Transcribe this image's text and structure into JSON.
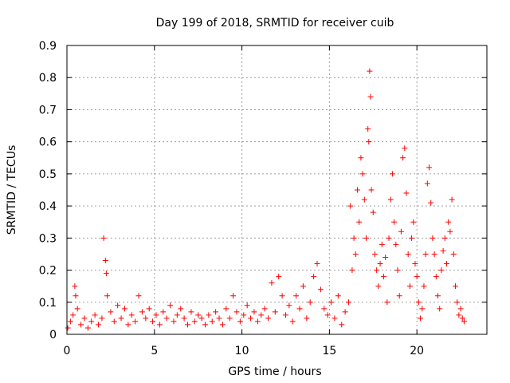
{
  "chart_data": {
    "type": "scatter",
    "title": "Day 199 of 2018, SRMTID for receiver cuib",
    "xlabel": "GPS time / hours",
    "ylabel": "SRMTID / TECUs",
    "xlim": [
      0,
      24
    ],
    "ylim": [
      0,
      0.9
    ],
    "xticks": [
      0,
      5,
      10,
      15,
      20
    ],
    "xtick_labels": [
      "0",
      "5",
      "10",
      "15",
      "20"
    ],
    "yticks": [
      0,
      0.1,
      0.2,
      0.3,
      0.4,
      0.5,
      0.6,
      0.7,
      0.8,
      0.9
    ],
    "ytick_labels": [
      "0",
      "0.1",
      "0.2",
      "0.3",
      "0.4",
      "0.5",
      "0.6",
      "0.7",
      "0.8",
      "0.9"
    ],
    "grid": true,
    "marker": "+",
    "marker_color": "#ff0000",
    "series": [
      {
        "name": "SRMTID",
        "points": [
          [
            0.05,
            0.02
          ],
          [
            0.2,
            0.04
          ],
          [
            0.35,
            0.06
          ],
          [
            0.45,
            0.15
          ],
          [
            0.5,
            0.12
          ],
          [
            0.6,
            0.08
          ],
          [
            0.8,
            0.03
          ],
          [
            1.0,
            0.05
          ],
          [
            1.2,
            0.02
          ],
          [
            1.4,
            0.04
          ],
          [
            1.6,
            0.06
          ],
          [
            1.8,
            0.03
          ],
          [
            2.0,
            0.05
          ],
          [
            2.1,
            0.3
          ],
          [
            2.2,
            0.23
          ],
          [
            2.25,
            0.19
          ],
          [
            2.3,
            0.12
          ],
          [
            2.5,
            0.07
          ],
          [
            2.7,
            0.04
          ],
          [
            2.9,
            0.09
          ],
          [
            3.1,
            0.05
          ],
          [
            3.3,
            0.08
          ],
          [
            3.5,
            0.03
          ],
          [
            3.7,
            0.06
          ],
          [
            3.9,
            0.04
          ],
          [
            4.1,
            0.12
          ],
          [
            4.3,
            0.07
          ],
          [
            4.5,
            0.05
          ],
          [
            4.7,
            0.08
          ],
          [
            4.9,
            0.04
          ],
          [
            5.1,
            0.06
          ],
          [
            5.3,
            0.03
          ],
          [
            5.5,
            0.07
          ],
          [
            5.7,
            0.05
          ],
          [
            5.9,
            0.09
          ],
          [
            6.1,
            0.04
          ],
          [
            6.3,
            0.06
          ],
          [
            6.5,
            0.08
          ],
          [
            6.7,
            0.05
          ],
          [
            6.9,
            0.03
          ],
          [
            7.1,
            0.07
          ],
          [
            7.3,
            0.04
          ],
          [
            7.5,
            0.06
          ],
          [
            7.7,
            0.05
          ],
          [
            7.9,
            0.03
          ],
          [
            8.1,
            0.06
          ],
          [
            8.3,
            0.04
          ],
          [
            8.5,
            0.07
          ],
          [
            8.7,
            0.05
          ],
          [
            8.9,
            0.03
          ],
          [
            9.1,
            0.08
          ],
          [
            9.3,
            0.05
          ],
          [
            9.5,
            0.12
          ],
          [
            9.7,
            0.07
          ],
          [
            9.9,
            0.04
          ],
          [
            10.1,
            0.06
          ],
          [
            10.3,
            0.09
          ],
          [
            10.5,
            0.05
          ],
          [
            10.7,
            0.07
          ],
          [
            10.9,
            0.04
          ],
          [
            11.1,
            0.06
          ],
          [
            11.3,
            0.08
          ],
          [
            11.5,
            0.05
          ],
          [
            11.7,
            0.16
          ],
          [
            11.9,
            0.07
          ],
          [
            12.1,
            0.18
          ],
          [
            12.3,
            0.12
          ],
          [
            12.5,
            0.06
          ],
          [
            12.7,
            0.09
          ],
          [
            12.9,
            0.04
          ],
          [
            13.1,
            0.12
          ],
          [
            13.3,
            0.08
          ],
          [
            13.5,
            0.15
          ],
          [
            13.7,
            0.05
          ],
          [
            13.9,
            0.1
          ],
          [
            14.1,
            0.18
          ],
          [
            14.3,
            0.22
          ],
          [
            14.5,
            0.14
          ],
          [
            14.7,
            0.08
          ],
          [
            14.9,
            0.06
          ],
          [
            15.1,
            0.1
          ],
          [
            15.3,
            0.05
          ],
          [
            15.5,
            0.12
          ],
          [
            15.7,
            0.03
          ],
          [
            15.9,
            0.07
          ],
          [
            16.1,
            0.1
          ],
          [
            16.2,
            0.4
          ],
          [
            16.3,
            0.2
          ],
          [
            16.4,
            0.3
          ],
          [
            16.5,
            0.25
          ],
          [
            16.6,
            0.45
          ],
          [
            16.7,
            0.35
          ],
          [
            16.8,
            0.55
          ],
          [
            16.9,
            0.5
          ],
          [
            17.0,
            0.42
          ],
          [
            17.1,
            0.3
          ],
          [
            17.2,
            0.64
          ],
          [
            17.25,
            0.6
          ],
          [
            17.3,
            0.82
          ],
          [
            17.35,
            0.74
          ],
          [
            17.4,
            0.45
          ],
          [
            17.5,
            0.38
          ],
          [
            17.6,
            0.25
          ],
          [
            17.7,
            0.2
          ],
          [
            17.8,
            0.15
          ],
          [
            17.9,
            0.22
          ],
          [
            18.0,
            0.28
          ],
          [
            18.1,
            0.18
          ],
          [
            18.2,
            0.24
          ],
          [
            18.3,
            0.1
          ],
          [
            18.4,
            0.3
          ],
          [
            18.5,
            0.42
          ],
          [
            18.6,
            0.5
          ],
          [
            18.7,
            0.35
          ],
          [
            18.8,
            0.28
          ],
          [
            18.9,
            0.2
          ],
          [
            19.0,
            0.12
          ],
          [
            19.1,
            0.32
          ],
          [
            19.2,
            0.55
          ],
          [
            19.3,
            0.58
          ],
          [
            19.4,
            0.44
          ],
          [
            19.5,
            0.25
          ],
          [
            19.6,
            0.15
          ],
          [
            19.7,
            0.3
          ],
          [
            19.8,
            0.35
          ],
          [
            19.9,
            0.22
          ],
          [
            20.0,
            0.18
          ],
          [
            20.1,
            0.1
          ],
          [
            20.2,
            0.05
          ],
          [
            20.3,
            0.08
          ],
          [
            20.4,
            0.15
          ],
          [
            20.5,
            0.25
          ],
          [
            20.6,
            0.47
          ],
          [
            20.7,
            0.52
          ],
          [
            20.8,
            0.41
          ],
          [
            20.9,
            0.3
          ],
          [
            21.0,
            0.25
          ],
          [
            21.1,
            0.18
          ],
          [
            21.2,
            0.12
          ],
          [
            21.3,
            0.08
          ],
          [
            21.4,
            0.2
          ],
          [
            21.5,
            0.26
          ],
          [
            21.6,
            0.3
          ],
          [
            21.7,
            0.22
          ],
          [
            21.8,
            0.35
          ],
          [
            21.9,
            0.32
          ],
          [
            22.0,
            0.42
          ],
          [
            22.1,
            0.25
          ],
          [
            22.2,
            0.15
          ],
          [
            22.3,
            0.1
          ],
          [
            22.4,
            0.06
          ],
          [
            22.5,
            0.08
          ],
          [
            22.6,
            0.05
          ],
          [
            22.7,
            0.04
          ]
        ]
      }
    ]
  }
}
